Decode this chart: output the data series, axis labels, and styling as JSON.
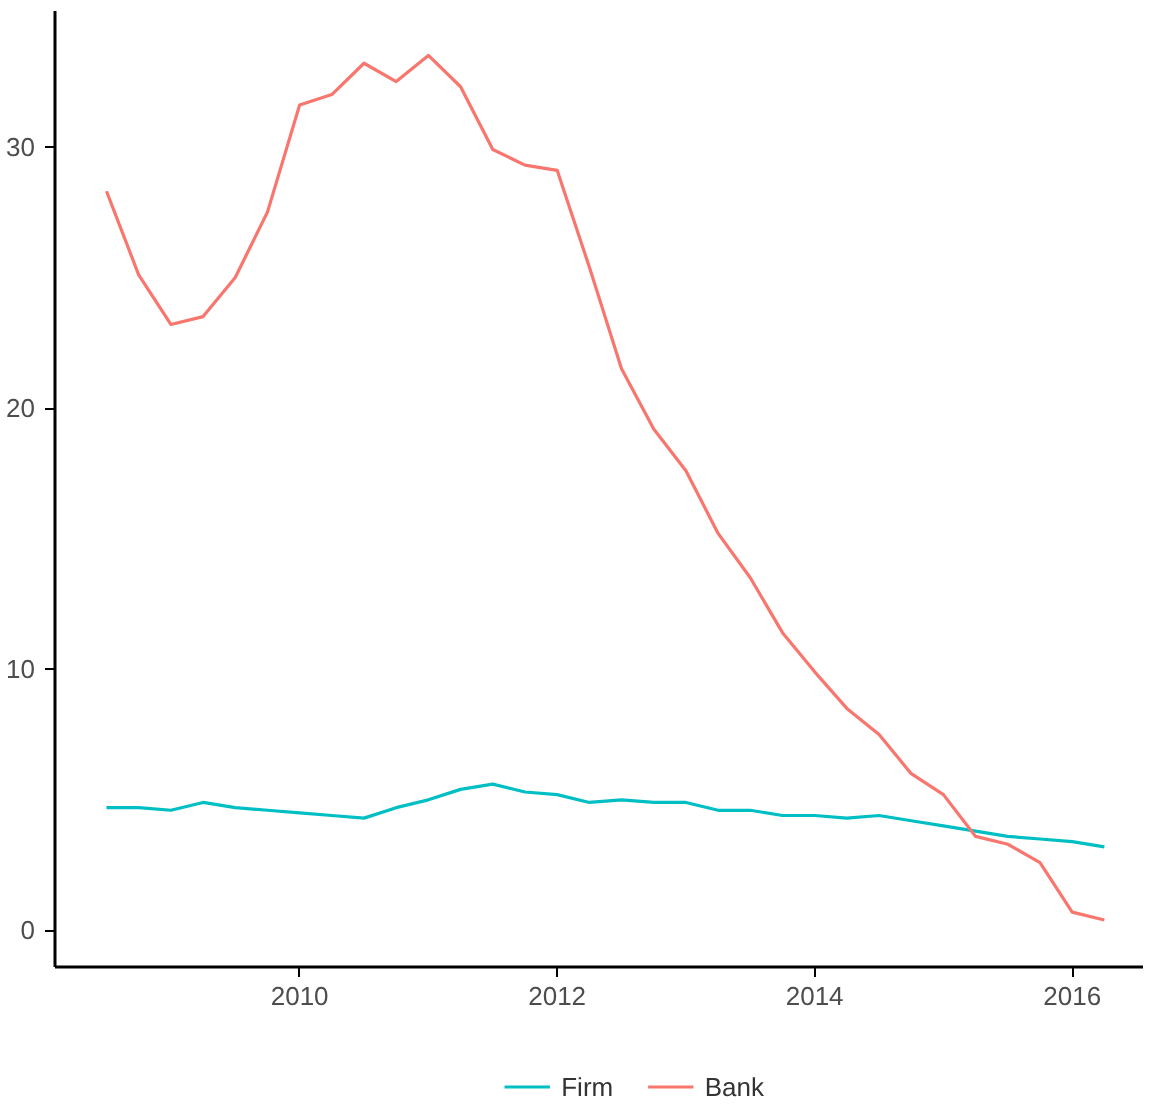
{
  "chart_data": {
    "type": "line",
    "x": [
      2008.5,
      2008.75,
      2009.0,
      2009.25,
      2009.5,
      2009.75,
      2010.0,
      2010.25,
      2010.5,
      2010.75,
      2011.0,
      2011.25,
      2011.5,
      2011.75,
      2012.0,
      2012.25,
      2012.5,
      2012.75,
      2013.0,
      2013.25,
      2013.5,
      2013.75,
      2014.0,
      2014.25,
      2014.5,
      2014.75,
      2015.0,
      2015.25,
      2015.5,
      2015.75,
      2016.0,
      2016.25
    ],
    "series": [
      {
        "name": "Firm",
        "color": "#00bfc4",
        "values": [
          4.7,
          4.7,
          4.6,
          4.9,
          4.7,
          4.6,
          4.5,
          4.4,
          4.3,
          4.7,
          5.0,
          5.4,
          5.6,
          5.3,
          5.2,
          4.9,
          5.0,
          4.9,
          4.9,
          4.6,
          4.6,
          4.4,
          4.4,
          4.3,
          4.4,
          4.2,
          4.0,
          3.8,
          3.6,
          3.5,
          3.4,
          3.2
        ]
      },
      {
        "name": "Bank",
        "color": "#f8766d",
        "values": [
          28.3,
          25.1,
          23.2,
          23.5,
          25.0,
          27.5,
          31.6,
          32.0,
          33.2,
          32.5,
          33.5,
          32.3,
          29.9,
          29.3,
          29.1,
          25.4,
          21.5,
          19.2,
          17.6,
          15.2,
          13.5,
          11.4,
          9.9,
          8.5,
          7.5,
          6.0,
          5.2,
          3.6,
          3.3,
          2.6,
          0.7,
          0.4
        ]
      }
    ],
    "xlim": [
      2008.1,
      2016.55
    ],
    "xticks": [
      2010,
      2012,
      2014,
      2016
    ],
    "ylim": [
      -1.4,
      35.2
    ],
    "yticks": [
      0,
      10,
      20,
      30
    ],
    "grid": false,
    "legend": "bottom",
    "line_style": "solid",
    "marker": "none"
  }
}
